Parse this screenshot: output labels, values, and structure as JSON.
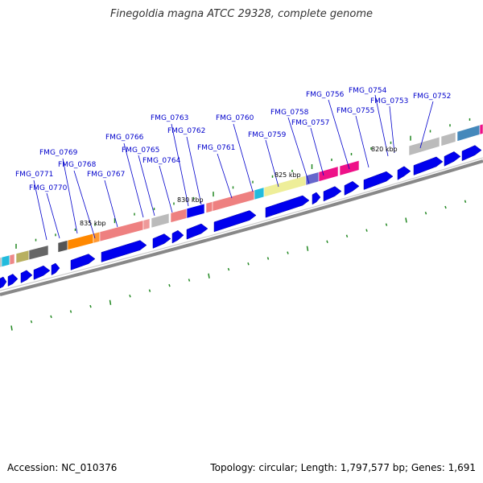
{
  "title": "Finegoldia magna ATCC 29328, complete genome",
  "footer": {
    "accession": "Accession: NC_010376",
    "summary": "Topology: circular; Length: 1,797,577 bp; Genes: 1,691"
  },
  "scale_labels": [
    "835 kbp",
    "830 kbp",
    "825 kbp",
    "820 kbp"
  ],
  "gene_labels": [
    "FMG_0771",
    "FMG_0770",
    "FMG_0769",
    "FMG_0768",
    "FMG_0767",
    "FMG_0766",
    "FMG_0765",
    "FMG_0764",
    "FMG_0763",
    "FMG_0762",
    "FMG_0761",
    "FMG_0760",
    "FMG_0759",
    "FMG_0758",
    "FMG_0757",
    "FMG_0756",
    "FMG_0755",
    "FMG_0754",
    "FMG_0753",
    "FMG_0752"
  ],
  "colors": {
    "gene_arrow": "#0000ee",
    "label": "#0000cc",
    "leader": "#0000cc",
    "backbone": "#888888",
    "tick": "#228822"
  }
}
